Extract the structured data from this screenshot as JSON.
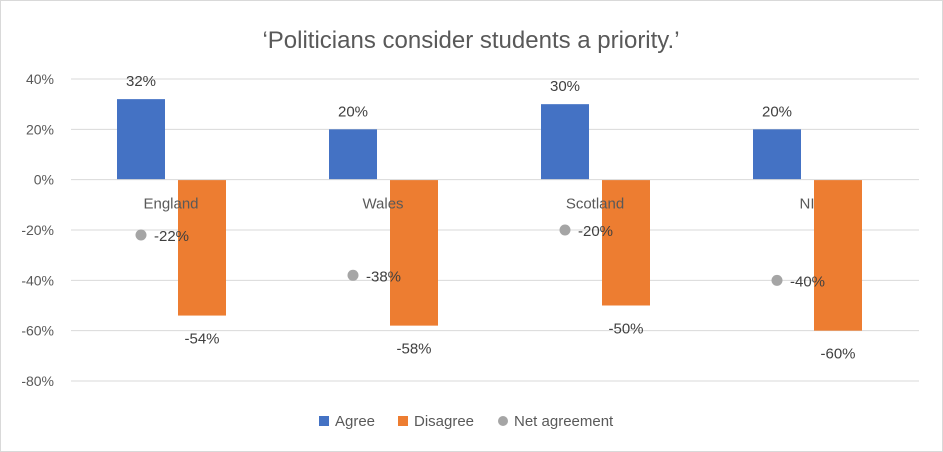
{
  "chart_data": {
    "type": "bar",
    "title": "‘Politicians consider students a priority.’",
    "categories": [
      "England",
      "Wales",
      "Scotland",
      "NI"
    ],
    "series": [
      {
        "name": "Agree",
        "type": "bar",
        "color": "#4472c4",
        "values": [
          32,
          20,
          30,
          20
        ],
        "labels": [
          "32%",
          "20%",
          "30%",
          "20%"
        ]
      },
      {
        "name": "Disagree",
        "type": "bar",
        "color": "#ed7d31",
        "values": [
          -54,
          -58,
          -50,
          -60
        ],
        "labels": [
          "-54%",
          "-58%",
          "-50%",
          "-60%"
        ]
      },
      {
        "name": "Net agreement",
        "type": "scatter",
        "color": "#a5a5a5",
        "values": [
          -22,
          -38,
          -20,
          -40
        ],
        "labels": [
          "-22%",
          "-38%",
          "-20%",
          "-40%"
        ]
      }
    ],
    "ylim": [
      -80,
      40
    ],
    "yticks": [
      40,
      20,
      0,
      -20,
      -40,
      -60,
      -80
    ],
    "ytick_labels": [
      "40%",
      "20%",
      "0%",
      "-20%",
      "-40%",
      "-60%",
      "-80%"
    ],
    "xlabel": "",
    "ylabel": "",
    "grid": true,
    "legend_position": "bottom"
  }
}
